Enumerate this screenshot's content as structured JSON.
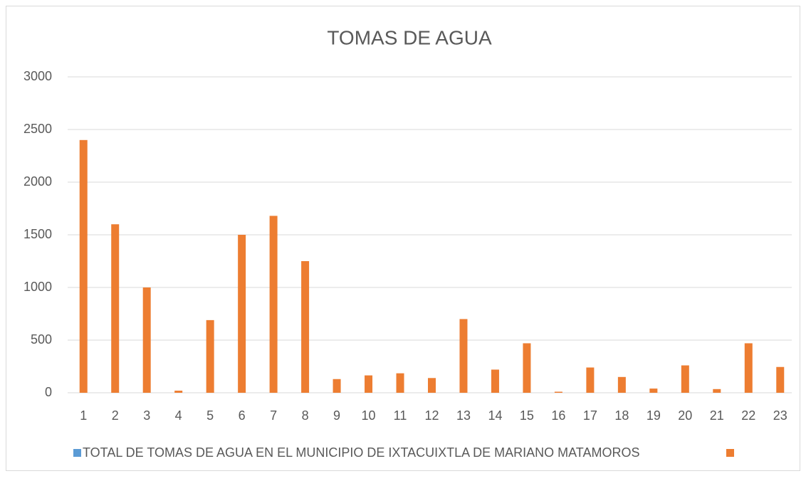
{
  "chart_data": {
    "type": "bar",
    "title": "TOMAS DE AGUA",
    "categories": [
      1,
      2,
      3,
      4,
      5,
      6,
      7,
      8,
      9,
      10,
      11,
      12,
      13,
      14,
      15,
      16,
      17,
      18,
      19,
      20,
      21,
      22,
      23
    ],
    "series": [
      {
        "name": "TOTAL DE TOMAS DE AGUA EN EL MUNICIPIO DE IXTACUIXTLA DE MARIANO MATAMOROS",
        "color": "#5b9bd5",
        "values": [
          null,
          null,
          null,
          null,
          null,
          null,
          null,
          null,
          null,
          null,
          null,
          null,
          null,
          null,
          null,
          null,
          null,
          null,
          null,
          null,
          null,
          null,
          null
        ]
      },
      {
        "color": "#ed7d31",
        "values": [
          2400,
          1600,
          1000,
          20,
          690,
          1500,
          1680,
          1250,
          130,
          165,
          185,
          140,
          700,
          220,
          470,
          10,
          240,
          150,
          40,
          260,
          35,
          470,
          245
        ]
      }
    ],
    "ylim": [
      0,
      3000
    ],
    "yticks": [
      0,
      500,
      1000,
      1500,
      2000,
      2500,
      3000
    ],
    "grid": true
  }
}
